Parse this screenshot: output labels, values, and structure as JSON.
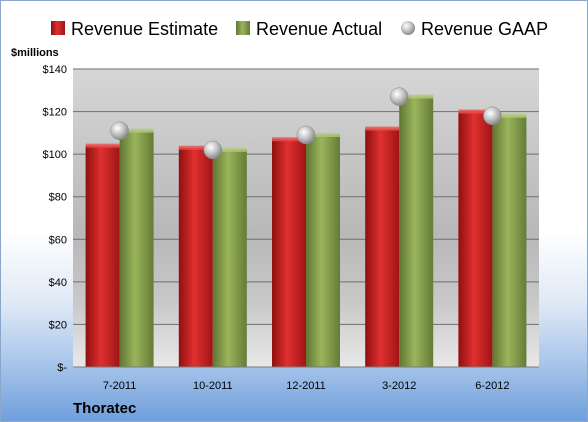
{
  "chart_data": {
    "type": "bar",
    "title": "",
    "company": "Thoratec",
    "unit_label": "$millions",
    "categories": [
      "7-2011",
      "10-2011",
      "12-2011",
      "3-2012",
      "6-2012"
    ],
    "series": [
      {
        "name": "Revenue Estimate",
        "kind": "bar",
        "color": "#cc1c1c",
        "values": [
          104,
          103,
          107,
          112,
          120
        ]
      },
      {
        "name": "Revenue Actual",
        "kind": "bar",
        "color": "#7f9a45",
        "values": [
          111,
          102,
          109,
          127,
          118
        ]
      },
      {
        "name": "Revenue GAAP",
        "kind": "marker",
        "color": "#b8b8b8",
        "values": [
          111,
          102,
          109,
          127,
          118
        ]
      }
    ],
    "ylim": [
      0,
      140
    ],
    "yticks": [
      0,
      20,
      40,
      60,
      80,
      100,
      120,
      140
    ],
    "ytick_labels": [
      "$-",
      "$20",
      "$40",
      "$60",
      "$80",
      "$100",
      "$120",
      "$140"
    ],
    "grid": true,
    "legend_position": "top"
  }
}
